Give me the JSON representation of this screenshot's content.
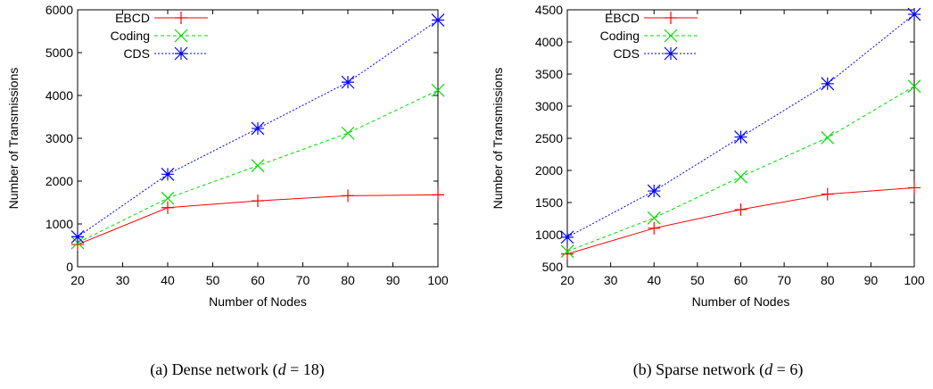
{
  "chart_data": [
    {
      "type": "line",
      "caption": "(a) Dense network (d = 18)",
      "caption_parts": {
        "prefix": "(a) Dense network (",
        "var": "d",
        "eq": " = ",
        "num": "18",
        "suffix": ")"
      },
      "xlabel": "Number of Nodes",
      "ylabel": "Number of Transmissions",
      "xlim": [
        20,
        100
      ],
      "ylim": [
        0,
        6000
      ],
      "xticks": [
        20,
        30,
        40,
        50,
        60,
        70,
        80,
        90,
        100
      ],
      "yticks": [
        0,
        1000,
        2000,
        3000,
        4000,
        5000,
        6000
      ],
      "grid": false,
      "legend_position": "top-left",
      "x": [
        20,
        40,
        60,
        80,
        100
      ],
      "series": [
        {
          "name": "EBCD",
          "color": "#ff0000",
          "marker": "plus",
          "dash": "solid",
          "values": [
            520,
            1380,
            1540,
            1660,
            1680
          ]
        },
        {
          "name": "Coding",
          "color": "#00dd00",
          "marker": "x",
          "dash": "dashed",
          "values": [
            560,
            1600,
            2360,
            3120,
            4120
          ]
        },
        {
          "name": "CDS",
          "color": "#0000ff",
          "marker": "star",
          "dash": "dotted",
          "values": [
            700,
            2160,
            3230,
            4310,
            5760
          ]
        }
      ]
    },
    {
      "type": "line",
      "caption": "(b) Sparse network (d = 6)",
      "caption_parts": {
        "prefix": "(b) Sparse network (",
        "var": "d",
        "eq": " = ",
        "num": "6",
        "suffix": ")"
      },
      "xlabel": "Number of Nodes",
      "ylabel": "Number of Transmissions",
      "xlim": [
        20,
        100
      ],
      "ylim": [
        500,
        4500
      ],
      "xticks": [
        20,
        30,
        40,
        50,
        60,
        70,
        80,
        90,
        100
      ],
      "yticks": [
        500,
        1000,
        1500,
        2000,
        2500,
        3000,
        3500,
        4000,
        4500
      ],
      "grid": false,
      "legend_position": "top-left",
      "x": [
        20,
        40,
        60,
        80,
        100
      ],
      "series": [
        {
          "name": "EBCD",
          "color": "#ff0000",
          "marker": "plus",
          "dash": "solid",
          "values": [
            700,
            1100,
            1390,
            1630,
            1730
          ]
        },
        {
          "name": "Coding",
          "color": "#00dd00",
          "marker": "x",
          "dash": "dashed",
          "values": [
            740,
            1260,
            1900,
            2510,
            3310
          ]
        },
        {
          "name": "CDS",
          "color": "#0000ff",
          "marker": "star",
          "dash": "dotted",
          "values": [
            960,
            1680,
            2520,
            3350,
            4430
          ]
        }
      ]
    }
  ]
}
